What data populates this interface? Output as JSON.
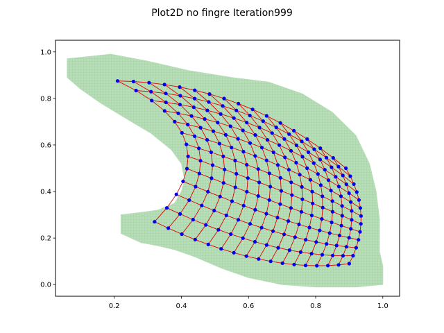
{
  "chart_data": {
    "type": "scatter",
    "title": "Plot2D no fingre Iteration999",
    "xlabel": "",
    "ylabel": "",
    "xlim": [
      0.025,
      1.05
    ],
    "ylim": [
      -0.05,
      1.05
    ],
    "x_ticks": [
      "0.2",
      "0.4",
      "0.6",
      "0.8",
      "1.0"
    ],
    "y_ticks": [
      "0.0",
      "0.2",
      "0.4",
      "0.6",
      "0.8",
      "1.0"
    ],
    "grid": false,
    "legend": "none",
    "colors": {
      "region_fill": "#b6dcb6",
      "mesh_line": "#dd0000",
      "node_point": "#0000ee"
    },
    "region_polygon": [
      [
        0.06,
        0.97
      ],
      [
        0.19,
        0.99
      ],
      [
        0.3,
        0.96
      ],
      [
        0.42,
        0.92
      ],
      [
        0.55,
        0.89
      ],
      [
        0.66,
        0.87
      ],
      [
        0.76,
        0.82
      ],
      [
        0.85,
        0.74
      ],
      [
        0.92,
        0.64
      ],
      [
        0.96,
        0.52
      ],
      [
        0.98,
        0.4
      ],
      [
        0.99,
        0.28
      ],
      [
        0.99,
        0.14
      ],
      [
        1.0,
        0.08
      ],
      [
        1.0,
        0.0
      ],
      [
        0.92,
        -0.01
      ],
      [
        0.8,
        -0.01
      ],
      [
        0.7,
        0.0
      ],
      [
        0.6,
        0.03
      ],
      [
        0.52,
        0.07
      ],
      [
        0.44,
        0.12
      ],
      [
        0.38,
        0.15
      ],
      [
        0.32,
        0.17
      ],
      [
        0.28,
        0.18
      ],
      [
        0.22,
        0.22
      ],
      [
        0.22,
        0.3
      ],
      [
        0.28,
        0.31
      ],
      [
        0.33,
        0.32
      ],
      [
        0.38,
        0.35
      ],
      [
        0.4,
        0.4
      ],
      [
        0.41,
        0.45
      ],
      [
        0.4,
        0.52
      ],
      [
        0.37,
        0.58
      ],
      [
        0.31,
        0.65
      ],
      [
        0.24,
        0.71
      ],
      [
        0.16,
        0.78
      ],
      [
        0.1,
        0.84
      ],
      [
        0.06,
        0.89
      ]
    ],
    "mesh_corners": {
      "top_left": [
        0.21,
        0.875
      ],
      "top_right": [
        0.89,
        0.5
      ],
      "bottom_right": [
        0.9,
        0.09
      ],
      "bottom_left": [
        0.32,
        0.27
      ]
    },
    "mesh_bulge": {
      "top_edge": [
        0.02,
        0.09
      ],
      "right_edge": [
        0.04,
        0.0
      ],
      "bottom_edge": [
        0.02,
        -0.07
      ],
      "left_edge": [
        0.15,
        0.03
      ]
    },
    "mesh_rows": 12,
    "mesh_cols": 16
  }
}
